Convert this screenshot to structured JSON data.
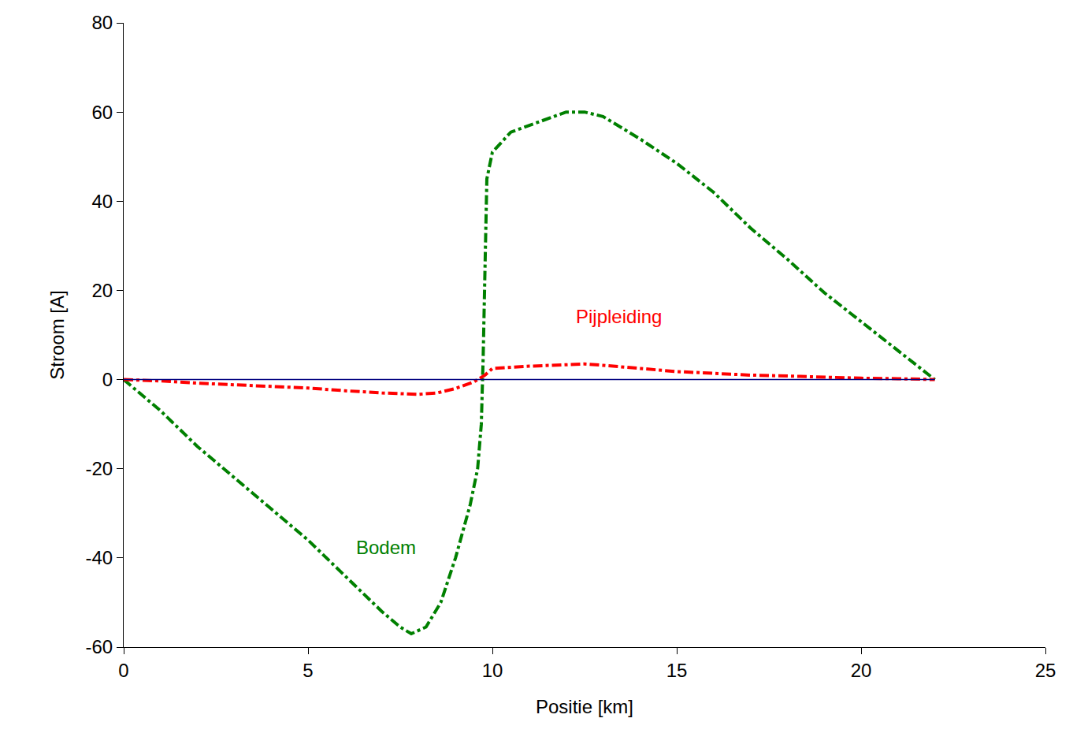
{
  "chart_data": {
    "type": "line",
    "x_label": "Positie [km]",
    "y_label": "Stroom [A]",
    "xlim": [
      0,
      25
    ],
    "xticks": [
      0,
      5,
      10,
      15,
      20,
      25
    ],
    "ylim": [
      -60,
      80
    ],
    "yticks": [
      -60,
      -40,
      -20,
      0,
      20,
      40,
      60,
      80
    ],
    "grid": false,
    "series": [
      {
        "name": "Bodem",
        "color": "#008000",
        "line_style": "dashdot",
        "x": [
          0,
          1,
          2,
          3,
          4,
          5,
          6,
          7,
          7.5,
          7.8,
          8.2,
          8.6,
          9,
          9.4,
          9.6,
          9.7,
          9.75,
          9.8,
          9.85,
          10,
          10.5,
          11,
          12,
          12.5,
          13,
          14,
          15,
          16,
          17,
          18,
          19,
          20,
          21,
          22
        ],
        "values": [
          0,
          -7,
          -15,
          -22,
          -29,
          -36,
          -44,
          -52,
          -55.5,
          -57,
          -55.5,
          -50,
          -40,
          -28,
          -20,
          -10,
          5,
          25,
          45,
          51,
          55.5,
          57,
          60,
          60,
          59,
          54,
          48.5,
          42,
          34,
          27,
          19.5,
          13,
          6.5,
          0
        ]
      },
      {
        "name": "Pijpleiding",
        "color": "#ff0000",
        "line_style": "dashdot",
        "x": [
          0,
          1,
          2,
          3,
          4,
          5,
          6,
          7,
          8,
          8.5,
          9,
          9.5,
          9.8,
          10,
          11,
          12,
          12.5,
          13,
          14,
          15,
          16,
          17,
          18,
          19,
          20,
          21,
          22
        ],
        "values": [
          0,
          -0.3,
          -0.8,
          -1.2,
          -1.6,
          -1.9,
          -2.5,
          -3,
          -3.3,
          -3,
          -2,
          -0.5,
          1,
          2.5,
          3,
          3.3,
          3.5,
          3.2,
          2.5,
          1.8,
          1.4,
          1,
          0.8,
          0.5,
          0.3,
          0.2,
          0
        ]
      },
      {
        "color": "#000080",
        "line_style": "solid",
        "x": [
          0,
          22
        ],
        "values": [
          0,
          0
        ]
      }
    ]
  }
}
